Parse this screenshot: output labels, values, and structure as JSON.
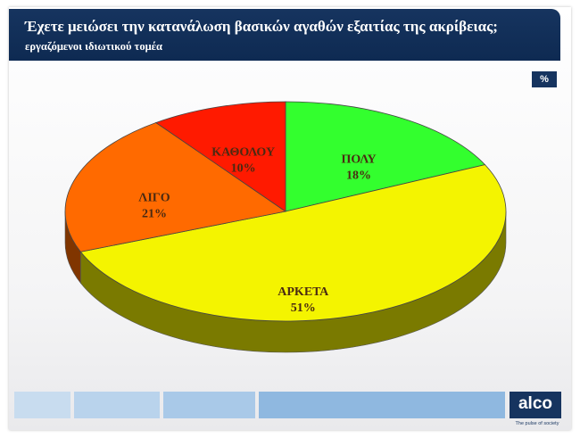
{
  "header": {
    "title": "Έχετε μειώσει την κατανάλωση βασικών αγαθών εξαιτίας της ακρίβειας;",
    "subtitle": "εργαζόμενοι ιδιωτικού τομέα"
  },
  "unit_badge": "%",
  "brand": {
    "logo": "alco",
    "tagline": "The pulse of society"
  },
  "chart_data": {
    "type": "pie",
    "title": "Έχετε μειώσει την κατανάλωση βασικών αγαθών εξαιτίας της ακρίβειας;",
    "subtitle": "εργαζόμενοι ιδιωτικού τομέα",
    "unit": "%",
    "style": "3d",
    "slices": [
      {
        "label": "ΠΟΛΥ",
        "value": 18,
        "display": "18%",
        "color": "#33ff2e"
      },
      {
        "label": "ΑΡΚΕΤΑ",
        "value": 51,
        "display": "51%",
        "color": "#f4f400"
      },
      {
        "label": "ΛΙΓΟ",
        "value": 21,
        "display": "21%",
        "color": "#ff6a00"
      },
      {
        "label": "ΚΑΘΟΛΟΥ",
        "value": 10,
        "display": "10%",
        "color": "#ff1a00"
      }
    ]
  }
}
